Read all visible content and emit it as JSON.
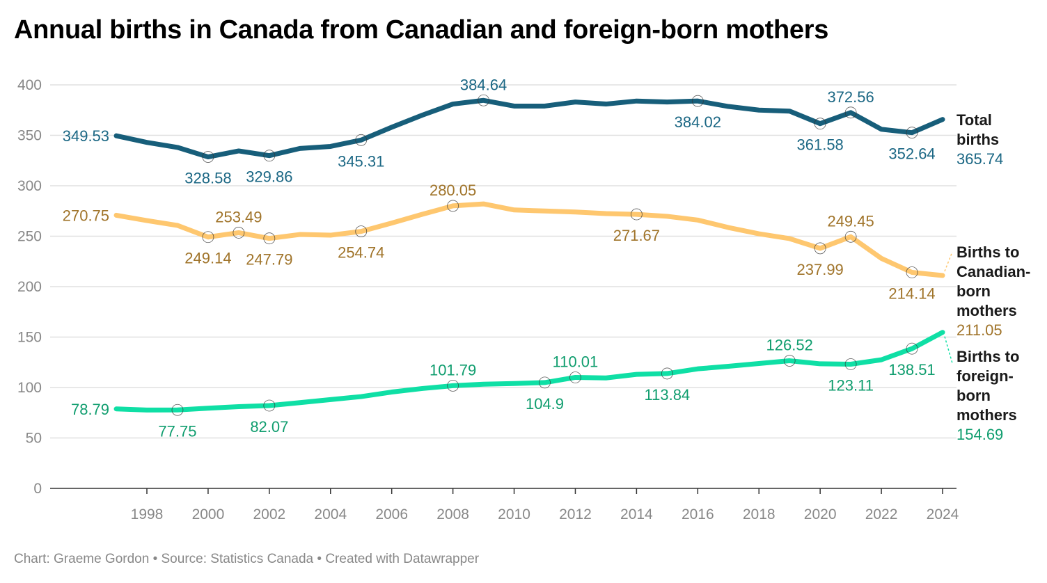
{
  "chart_data": {
    "type": "line",
    "title": "Annual births in Canada from Canadian and foreign-born mothers",
    "footer": "Chart: Graeme Gordon • Source: Statistics Canada • Created with Datawrapper",
    "xlabel": "",
    "ylabel": "",
    "ylim": [
      0,
      400
    ],
    "yticks": [
      0,
      50,
      100,
      150,
      200,
      250,
      300,
      350,
      400
    ],
    "xticks": [
      1998,
      2000,
      2002,
      2004,
      2006,
      2008,
      2010,
      2012,
      2014,
      2016,
      2018,
      2020,
      2022,
      2024
    ],
    "grid": true,
    "legend": "right (direct labels at line ends)",
    "x": [
      1997,
      1998,
      1999,
      2000,
      2001,
      2002,
      2003,
      2004,
      2005,
      2006,
      2007,
      2008,
      2009,
      2010,
      2011,
      2012,
      2013,
      2014,
      2015,
      2016,
      2017,
      2018,
      2019,
      2020,
      2021,
      2022,
      2023,
      2024
    ],
    "series": [
      {
        "name": "Total births",
        "name_lines": [
          "Total",
          "births"
        ],
        "color": "#175e7a",
        "label_color": "#1b6784",
        "values": [
          349.53,
          343,
          338,
          328.58,
          334.5,
          329.86,
          337,
          339,
          345.31,
          358,
          370,
          381,
          384.64,
          379,
          379,
          383,
          381,
          384,
          383,
          384.02,
          378.6,
          375,
          374,
          361.58,
          372.56,
          356,
          352.64,
          365.74
        ],
        "labeled_years": [
          1997,
          2000,
          2002,
          2005,
          2009,
          2016,
          2020,
          2021,
          2023
        ]
      },
      {
        "name": "Births to Canadian-born mothers",
        "name_lines": [
          "Births to",
          "Canadian-",
          "born",
          "mothers"
        ],
        "color": "#fec76f",
        "label_color": "#a0742a",
        "values": [
          270.75,
          265.5,
          260.7,
          249.14,
          253.49,
          247.79,
          251.7,
          251,
          254.74,
          263,
          271.7,
          280.05,
          282,
          276,
          275,
          274,
          272.4,
          271.67,
          269.7,
          266,
          258.6,
          252.4,
          247.6,
          237.99,
          249.45,
          228,
          214.14,
          211.05
        ],
        "labeled_years": [
          1997,
          2000,
          2001,
          2002,
          2005,
          2008,
          2014,
          2020,
          2021,
          2023
        ]
      },
      {
        "name": "Births to foreign-born mothers",
        "name_lines": [
          "Births to",
          "foreign-",
          "born",
          "mothers"
        ],
        "color": "#0fdfa5",
        "label_color": "#0f9d6e",
        "values": [
          78.79,
          77.7,
          77.75,
          79.5,
          81,
          82.07,
          85,
          88,
          91,
          95.5,
          99,
          101.79,
          103.3,
          104,
          104.9,
          110.01,
          109.5,
          113,
          113.84,
          118.5,
          121,
          123.8,
          126.52,
          123.5,
          123.11,
          127.5,
          138.51,
          154.69
        ],
        "labeled_years": [
          1997,
          1999,
          2002,
          2008,
          2011,
          2012,
          2015,
          2019,
          2021,
          2023
        ]
      }
    ]
  }
}
